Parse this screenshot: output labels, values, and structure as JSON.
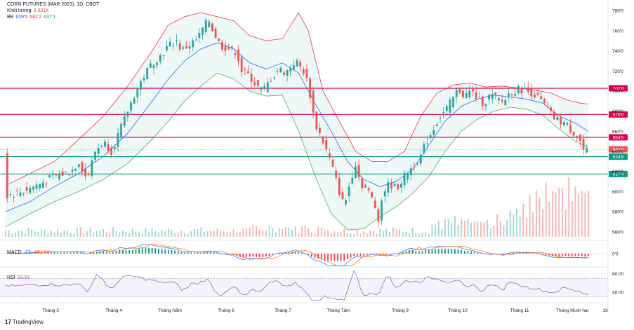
{
  "header": {
    "symbol": "CORN FUTURES (MAR 2023), 1D, CBOT",
    "volume_label": "Khối lượng",
    "volume_value": "3.931K",
    "bb_label": "BB",
    "bb_values": [
      "659'5",
      "682'2",
      "637'1"
    ]
  },
  "macd": {
    "label": "MACD",
    "values": [
      "-23",
      "-96",
      "-74"
    ]
  },
  "rsi": {
    "label": "RSI",
    "value": "33.93"
  },
  "footer": {
    "brand": "TradingView"
  },
  "colors": {
    "up": "#26a69a",
    "down": "#ef5350",
    "band_upper": "#f23645",
    "band_lower": "#4caf50",
    "basis": "#2962ff",
    "hline_red": "#e0004d",
    "hline_green": "#089981"
  },
  "chart_data": [
    {
      "type": "candlestick",
      "title": "CORN FUTURES (MAR 2023), 1D, CBOT",
      "x_ticks": [
        "Tháng 3",
        "Tháng 4",
        "Tháng Năm",
        "Tháng 6",
        "Tháng 7",
        "Tháng Tám",
        "Tháng 9",
        "Tháng 10",
        "Tháng 11",
        "Tháng Mười hai",
        "19"
      ],
      "y_ticks": [
        "780'0",
        "760'0",
        "740'0",
        "720'0",
        "700'0",
        "680'0",
        "660'0",
        "640'0",
        "620'0",
        "600'0",
        "580'0",
        "560'0"
      ],
      "ylim": [
        555,
        785
      ],
      "horizontal_levels": [
        {
          "label": "702'6",
          "value": 702.75,
          "color": "red"
        },
        {
          "label": "676'6",
          "value": 676.75,
          "color": "red"
        },
        {
          "label": "654'0",
          "value": 654,
          "color": "red"
        },
        {
          "label": "634'6",
          "value": 634.75,
          "color": "green"
        },
        {
          "label": "617'4",
          "value": 617.5,
          "color": "green"
        }
      ],
      "last_price": {
        "label": "642'0",
        "value": 642
      },
      "close_path": [
        [
          0,
          596
        ],
        [
          10,
          600
        ],
        [
          20,
          607
        ],
        [
          30,
          615
        ],
        [
          40,
          620
        ],
        [
          45,
          630
        ],
        [
          50,
          612
        ],
        [
          55,
          640
        ],
        [
          60,
          650
        ],
        [
          65,
          640
        ],
        [
          70,
          660
        ],
        [
          75,
          680
        ],
        [
          80,
          700
        ],
        [
          85,
          715
        ],
        [
          90,
          728
        ],
        [
          95,
          735
        ],
        [
          100,
          745
        ],
        [
          105,
          750
        ],
        [
          108,
          740
        ],
        [
          112,
          745
        ],
        [
          118,
          752
        ],
        [
          122,
          765
        ],
        [
          125,
          770
        ],
        [
          128,
          758
        ],
        [
          132,
          745
        ],
        [
          138,
          742
        ],
        [
          142,
          738
        ],
        [
          145,
          720
        ],
        [
          150,
          715
        ],
        [
          154,
          705
        ],
        [
          158,
          700
        ],
        [
          163,
          712
        ],
        [
          168,
          722
        ],
        [
          172,
          718
        ],
        [
          178,
          730
        ],
        [
          183,
          720
        ],
        [
          186,
          706
        ],
        [
          190,
          668
        ],
        [
          194,
          654
        ],
        [
          200,
          628
        ],
        [
          205,
          600
        ],
        [
          208,
          585
        ],
        [
          212,
          612
        ],
        [
          215,
          628
        ],
        [
          218,
          608
        ],
        [
          222,
          602
        ],
        [
          226,
          590
        ],
        [
          229,
          574
        ],
        [
          232,
          600
        ],
        [
          236,
          608
        ],
        [
          240,
          603
        ],
        [
          245,
          615
        ],
        [
          250,
          625
        ],
        [
          255,
          635
        ],
        [
          258,
          648
        ],
        [
          262,
          660
        ],
        [
          266,
          673
        ],
        [
          270,
          680
        ],
        [
          274,
          690
        ],
        [
          278,
          702
        ],
        [
          282,
          695
        ],
        [
          286,
          700
        ],
        [
          290,
          692
        ],
        [
          294,
          688
        ],
        [
          298,
          696
        ],
        [
          302,
          692
        ],
        [
          306,
          688
        ],
        [
          308,
          696
        ],
        [
          312,
          700
        ],
        [
          316,
          702
        ],
        [
          320,
          700
        ],
        [
          324,
          698
        ],
        [
          328,
          692
        ],
        [
          332,
          684
        ],
        [
          336,
          674
        ],
        [
          340,
          670
        ],
        [
          344,
          668
        ],
        [
          348,
          660
        ],
        [
          352,
          655
        ],
        [
          355,
          641
        ],
        [
          358,
          639
        ]
      ],
      "bollinger": {
        "upper": [
          [
            0,
            606
          ],
          [
            15,
            618
          ],
          [
            30,
            630
          ],
          [
            45,
            652
          ],
          [
            60,
            675
          ],
          [
            75,
            705
          ],
          [
            90,
            740
          ],
          [
            100,
            766
          ],
          [
            110,
            774
          ],
          [
            120,
            778
          ],
          [
            130,
            774
          ],
          [
            140,
            770
          ],
          [
            150,
            755
          ],
          [
            160,
            750
          ],
          [
            170,
            752
          ],
          [
            180,
            778
          ],
          [
            186,
            760
          ],
          [
            195,
            700
          ],
          [
            205,
            670
          ],
          [
            215,
            640
          ],
          [
            225,
            630
          ],
          [
            235,
            630
          ],
          [
            245,
            640
          ],
          [
            255,
            675
          ],
          [
            265,
            698
          ],
          [
            275,
            706
          ],
          [
            285,
            708
          ],
          [
            295,
            704
          ],
          [
            305,
            705
          ],
          [
            315,
            703
          ],
          [
            325,
            701
          ],
          [
            335,
            698
          ],
          [
            345,
            691
          ],
          [
            353,
            688
          ],
          [
            358,
            687
          ]
        ],
        "basis": [
          [
            0,
            580
          ],
          [
            15,
            590
          ],
          [
            30,
            605
          ],
          [
            45,
            618
          ],
          [
            60,
            635
          ],
          [
            75,
            658
          ],
          [
            90,
            690
          ],
          [
            100,
            712
          ],
          [
            110,
            730
          ],
          [
            120,
            742
          ],
          [
            130,
            748
          ],
          [
            140,
            742
          ],
          [
            150,
            728
          ],
          [
            160,
            722
          ],
          [
            170,
            728
          ],
          [
            180,
            718
          ],
          [
            190,
            688
          ],
          [
            200,
            660
          ],
          [
            210,
            630
          ],
          [
            220,
            612
          ],
          [
            230,
            605
          ],
          [
            240,
            610
          ],
          [
            250,
            622
          ],
          [
            260,
            646
          ],
          [
            270,
            670
          ],
          [
            280,
            685
          ],
          [
            290,
            692
          ],
          [
            300,
            696
          ],
          [
            310,
            694
          ],
          [
            320,
            692
          ],
          [
            330,
            688
          ],
          [
            340,
            675
          ],
          [
            350,
            668
          ],
          [
            358,
            660
          ]
        ],
        "lower": [
          [
            0,
            565
          ],
          [
            15,
            578
          ],
          [
            30,
            590
          ],
          [
            45,
            600
          ],
          [
            60,
            612
          ],
          [
            75,
            628
          ],
          [
            90,
            652
          ],
          [
            100,
            670
          ],
          [
            110,
            690
          ],
          [
            120,
            705
          ],
          [
            130,
            718
          ],
          [
            140,
            712
          ],
          [
            150,
            700
          ],
          [
            160,
            695
          ],
          [
            170,
            696
          ],
          [
            180,
            660
          ],
          [
            190,
            616
          ],
          [
            200,
            578
          ],
          [
            210,
            562
          ],
          [
            220,
            563
          ],
          [
            230,
            575
          ],
          [
            240,
            585
          ],
          [
            250,
            598
          ],
          [
            260,
            615
          ],
          [
            270,
            640
          ],
          [
            280,
            660
          ],
          [
            290,
            672
          ],
          [
            300,
            680
          ],
          [
            310,
            684
          ],
          [
            320,
            682
          ],
          [
            330,
            676
          ],
          [
            340,
            662
          ],
          [
            350,
            650
          ],
          [
            358,
            644
          ]
        ]
      }
    },
    {
      "type": "bar",
      "title": "Khối lượng",
      "last_value": "3.931K"
    },
    {
      "type": "histogram",
      "title": "MACD",
      "values_shown": [
        "-23",
        "-96",
        "-74"
      ],
      "y_ticks": [
        "0'0"
      ]
    },
    {
      "type": "line",
      "title": "RSI",
      "last_value": 33.93,
      "y_ticks": [
        "80.00",
        "40.00"
      ],
      "band": [
        30,
        70
      ]
    }
  ]
}
